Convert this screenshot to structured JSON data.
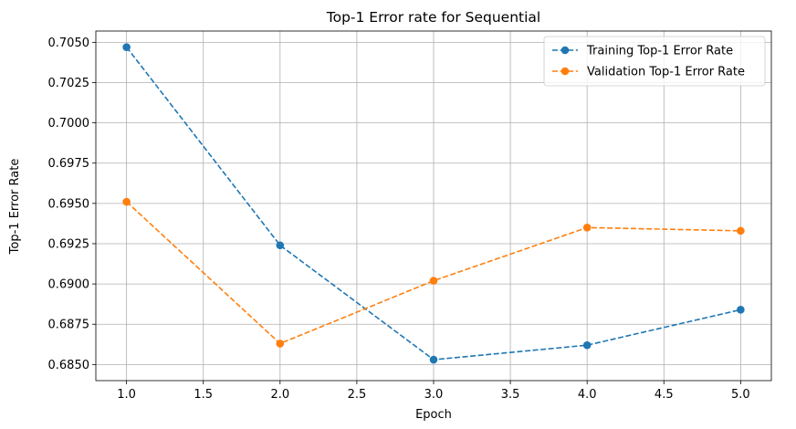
{
  "chart_data": {
    "type": "line",
    "title": "Top-1 Error rate for Sequential",
    "xlabel": "Epoch",
    "ylabel": "Top-1 Error Rate",
    "xlim": [
      0.8,
      5.2
    ],
    "ylim": [
      0.684,
      0.7057
    ],
    "xticks": [
      1.0,
      1.5,
      2.0,
      2.5,
      3.0,
      3.5,
      4.0,
      4.5,
      5.0
    ],
    "xtick_labels": [
      "1.0",
      "1.5",
      "2.0",
      "2.5",
      "3.0",
      "3.5",
      "4.0",
      "4.5",
      "5.0"
    ],
    "yticks": [
      0.685,
      0.6875,
      0.69,
      0.6925,
      0.695,
      0.6975,
      0.7,
      0.7025,
      0.705
    ],
    "ytick_labels": [
      "0.6850",
      "0.6875",
      "0.6900",
      "0.6925",
      "0.6950",
      "0.6975",
      "0.7000",
      "0.7025",
      "0.7050"
    ],
    "grid": true,
    "legend_position": "top-right",
    "line_style": "dashed",
    "marker": "circle",
    "x": [
      1,
      2,
      3,
      4,
      5
    ],
    "series": [
      {
        "name": "Training Top-1 Error Rate",
        "color": "#1f77b4",
        "values": [
          0.7047,
          0.6924,
          0.6853,
          0.6862,
          0.6884
        ]
      },
      {
        "name": "Validation Top-1 Error Rate",
        "color": "#ff7f0e",
        "values": [
          0.6951,
          0.6863,
          0.6902,
          0.6935,
          0.6933
        ]
      }
    ]
  }
}
